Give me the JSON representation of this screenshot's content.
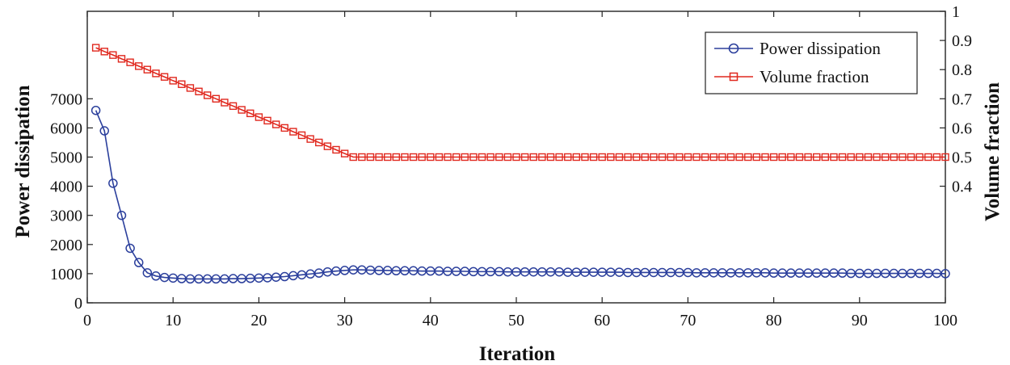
{
  "chart_data": {
    "type": "line",
    "xlabel": "Iteration",
    "ylabel_left": "Power dissipation",
    "ylabel_right": "Volume fraction",
    "xlim": [
      0,
      100
    ],
    "ylim_left": [
      0,
      10000
    ],
    "ylim_right": [
      0,
      1
    ],
    "x_ticks": [
      0,
      10,
      20,
      30,
      40,
      50,
      60,
      70,
      80,
      90,
      100
    ],
    "y_left_ticks": [
      0,
      1000,
      2000,
      3000,
      4000,
      5000,
      6000,
      7000
    ],
    "y_right_ticks": [
      "0.4",
      "0.5",
      "0.6",
      "0.7",
      "0.8",
      "0.9",
      "1"
    ],
    "legend_position": "top-right",
    "grid": false,
    "series": [
      {
        "name": "Power dissipation",
        "axis": "left",
        "color": "#2b3f9c",
        "marker": "circle",
        "x": [
          1,
          2,
          3,
          4,
          5,
          6,
          7,
          8,
          9,
          10,
          11,
          12,
          13,
          14,
          15,
          16,
          17,
          18,
          19,
          20,
          21,
          22,
          23,
          24,
          25,
          26,
          27,
          28,
          29,
          30,
          31,
          32,
          33,
          34,
          35,
          36,
          37,
          38,
          39,
          40,
          41,
          42,
          43,
          44,
          45,
          46,
          47,
          48,
          49,
          50,
          51,
          52,
          53,
          54,
          55,
          56,
          57,
          58,
          59,
          60,
          61,
          62,
          63,
          64,
          65,
          66,
          67,
          68,
          69,
          70,
          71,
          72,
          73,
          74,
          75,
          76,
          77,
          78,
          79,
          80,
          81,
          82,
          83,
          84,
          85,
          86,
          87,
          88,
          89,
          90,
          91,
          92,
          93,
          94,
          95,
          96,
          97,
          98,
          99,
          100
        ],
        "values": [
          6600,
          5900,
          4100,
          3000,
          1870,
          1380,
          1030,
          920,
          870,
          850,
          830,
          820,
          820,
          820,
          820,
          820,
          830,
          830,
          840,
          850,
          860,
          880,
          900,
          930,
          960,
          990,
          1020,
          1060,
          1090,
          1110,
          1130,
          1130,
          1120,
          1110,
          1110,
          1100,
          1100,
          1100,
          1090,
          1090,
          1090,
          1080,
          1080,
          1080,
          1070,
          1070,
          1070,
          1070,
          1060,
          1060,
          1060,
          1060,
          1060,
          1060,
          1060,
          1050,
          1050,
          1050,
          1050,
          1050,
          1050,
          1050,
          1040,
          1040,
          1040,
          1040,
          1040,
          1040,
          1040,
          1040,
          1030,
          1030,
          1030,
          1030,
          1030,
          1030,
          1030,
          1030,
          1030,
          1020,
          1020,
          1020,
          1020,
          1020,
          1020,
          1020,
          1020,
          1020,
          1010,
          1010,
          1010,
          1010,
          1010,
          1010,
          1010,
          1010,
          1010,
          1010,
          1010,
          1000
        ]
      },
      {
        "name": "Volume fraction",
        "axis": "right",
        "color": "#e0281e",
        "marker": "square",
        "x": [
          1,
          2,
          3,
          4,
          5,
          6,
          7,
          8,
          9,
          10,
          11,
          12,
          13,
          14,
          15,
          16,
          17,
          18,
          19,
          20,
          21,
          22,
          23,
          24,
          25,
          26,
          27,
          28,
          29,
          30,
          31,
          32,
          33,
          34,
          35,
          36,
          37,
          38,
          39,
          40,
          41,
          42,
          43,
          44,
          45,
          46,
          47,
          48,
          49,
          50,
          51,
          52,
          53,
          54,
          55,
          56,
          57,
          58,
          59,
          60,
          61,
          62,
          63,
          64,
          65,
          66,
          67,
          68,
          69,
          70,
          71,
          72,
          73,
          74,
          75,
          76,
          77,
          78,
          79,
          80,
          81,
          82,
          83,
          84,
          85,
          86,
          87,
          88,
          89,
          90,
          91,
          92,
          93,
          94,
          95,
          96,
          97,
          98,
          99,
          100
        ],
        "values": [
          0.875,
          0.862,
          0.85,
          0.837,
          0.825,
          0.812,
          0.8,
          0.787,
          0.775,
          0.762,
          0.75,
          0.737,
          0.725,
          0.712,
          0.7,
          0.687,
          0.675,
          0.662,
          0.65,
          0.637,
          0.625,
          0.612,
          0.6,
          0.587,
          0.575,
          0.562,
          0.55,
          0.537,
          0.525,
          0.512,
          0.5,
          0.5,
          0.5,
          0.5,
          0.5,
          0.5,
          0.5,
          0.5,
          0.5,
          0.5,
          0.5,
          0.5,
          0.5,
          0.5,
          0.5,
          0.5,
          0.5,
          0.5,
          0.5,
          0.5,
          0.5,
          0.5,
          0.5,
          0.5,
          0.5,
          0.5,
          0.5,
          0.5,
          0.5,
          0.5,
          0.5,
          0.5,
          0.5,
          0.5,
          0.5,
          0.5,
          0.5,
          0.5,
          0.5,
          0.5,
          0.5,
          0.5,
          0.5,
          0.5,
          0.5,
          0.5,
          0.5,
          0.5,
          0.5,
          0.5,
          0.5,
          0.5,
          0.5,
          0.5,
          0.5,
          0.5,
          0.5,
          0.5,
          0.5,
          0.5,
          0.5,
          0.5,
          0.5,
          0.5,
          0.5,
          0.5,
          0.5,
          0.5,
          0.5,
          0.5
        ]
      }
    ]
  }
}
